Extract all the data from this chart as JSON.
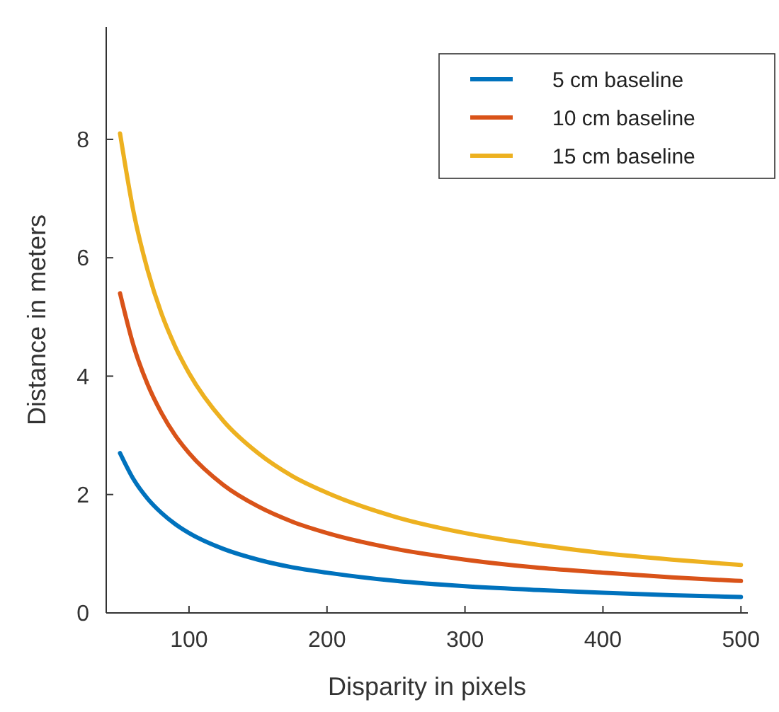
{
  "chart_data": {
    "type": "line",
    "xlabel": "Disparity in pixels",
    "ylabel": "Distance in meters",
    "x": [
      50,
      60,
      70,
      80,
      90,
      100,
      125,
      150,
      175,
      200,
      250,
      300,
      350,
      400,
      450,
      500
    ],
    "series": [
      {
        "name": "5 cm baseline",
        "color": "#0072bd",
        "values": [
          2.7,
          2.25,
          1.93,
          1.69,
          1.5,
          1.35,
          1.08,
          0.9,
          0.77,
          0.68,
          0.54,
          0.45,
          0.39,
          0.34,
          0.3,
          0.27
        ]
      },
      {
        "name": "10 cm baseline",
        "color": "#d95319",
        "values": [
          5.4,
          4.5,
          3.86,
          3.38,
          3,
          2.7,
          2.16,
          1.8,
          1.54,
          1.35,
          1.08,
          0.9,
          0.77,
          0.68,
          0.6,
          0.54
        ]
      },
      {
        "name": "15 cm baseline",
        "color": "#edb120",
        "values": [
          8.1,
          6.75,
          5.79,
          5.06,
          4.5,
          4.05,
          3.24,
          2.7,
          2.31,
          2.03,
          1.62,
          1.35,
          1.16,
          1.01,
          0.9,
          0.81
        ]
      }
    ],
    "xlim": [
      40,
      505
    ],
    "xticks": [
      100,
      200,
      300,
      400,
      500
    ],
    "ylim": [
      0,
      9.9
    ],
    "yticks": [
      0,
      2,
      4,
      6,
      8
    ],
    "grid": false,
    "legend": "top right",
    "marker": "none",
    "line_style": "solid"
  }
}
